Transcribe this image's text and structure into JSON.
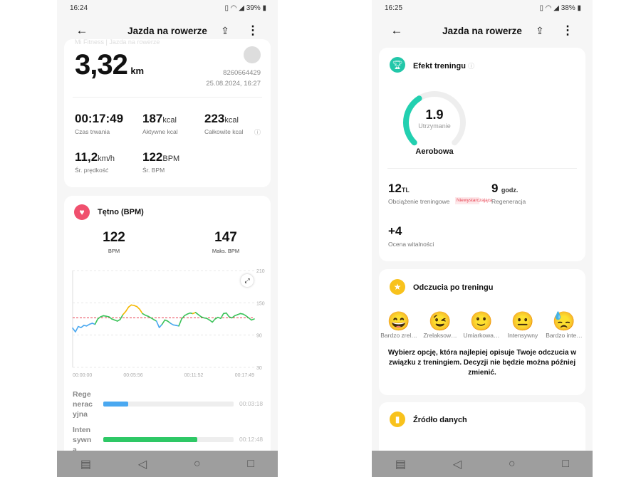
{
  "left": {
    "status": {
      "time": "16:24",
      "battery": "39%"
    },
    "header": {
      "title": "Jazda na rowerze"
    },
    "summary": {
      "faded_subtitle": "Mi Fitness | Jazda na rowerze",
      "distance": "3,32",
      "distance_unit": "km",
      "device_id": "8260664429",
      "datetime": "25.08.2024, 16:27",
      "stats": [
        {
          "value": "00:17:49",
          "unit": "",
          "label": "Czas trwania"
        },
        {
          "value": "187",
          "unit": "kcal",
          "label": "Aktywne kcal"
        },
        {
          "value": "223",
          "unit": "kcal",
          "label": "Całkowite kcal"
        },
        {
          "value": "11,2",
          "unit": "km/h",
          "label": "Śr. prędkość"
        },
        {
          "value": "122",
          "unit": "BPM",
          "label": "Śr. BPM"
        }
      ]
    },
    "heart": {
      "title": "Tętno (BPM)",
      "avg": "122",
      "avg_label": "BPM",
      "max": "147",
      "max_label": "Maks. BPM",
      "zones": [
        {
          "name": "Regeneracyjna",
          "time": "00:03:18",
          "fraction": 0.19,
          "color": "#4aa8f0"
        },
        {
          "name": "Intensywna",
          "time": "00:12:48",
          "fraction": 0.72,
          "color": "#2ec866"
        }
      ]
    }
  },
  "chart_data": {
    "type": "line",
    "title": "Tętno (BPM)",
    "xlabel": "",
    "ylabel": "BPM",
    "ylim": [
      30,
      210
    ],
    "yticks": [
      "210",
      "150",
      "90",
      "30"
    ],
    "ytick_values": [
      210,
      150,
      90,
      30
    ],
    "xticks": [
      "00:00:00",
      "00:05:56",
      "00:11:52",
      "00:17:49"
    ],
    "xlim_seconds": [
      0,
      1069
    ],
    "average_line": 122,
    "grid": true,
    "zone_colors": {
      "low": "#4aa8f0",
      "mid": "#3cc35a",
      "high": "#f5b800"
    },
    "zone_thresholds": [
      113,
      131
    ],
    "values": [
      103,
      96,
      106,
      104,
      108,
      107,
      110,
      112,
      110,
      120,
      124,
      126,
      125,
      124,
      120,
      118,
      116,
      119,
      128,
      134,
      142,
      146,
      145,
      143,
      138,
      130,
      127,
      125,
      122,
      119,
      116,
      104,
      110,
      118,
      116,
      112,
      109,
      108,
      107,
      120,
      126,
      129,
      131,
      130,
      132,
      128,
      124,
      122,
      121,
      118,
      114,
      120,
      123,
      121,
      130,
      131,
      124,
      122,
      126,
      128,
      130,
      129,
      126,
      122,
      118,
      120
    ]
  },
  "right": {
    "status": {
      "time": "16:25",
      "battery": "38%"
    },
    "header": {
      "title": "Jazda na rowerze"
    },
    "effect": {
      "title": "Efekt treningu",
      "value": "1.9",
      "gauge_fraction": 0.38,
      "state": "Utrzymanie",
      "type": "Aerobowa",
      "load": "12",
      "load_unit": "TL",
      "load_label": "Obciążenie treningowe",
      "load_badge": "Niewystarczająca",
      "recovery": "9",
      "recovery_unit": "godz.",
      "recovery_label": "Regeneracja",
      "vitality": "+4",
      "vitality_label": "Ocena witalności"
    },
    "feeling": {
      "title": "Odczucia po treningu",
      "options": [
        {
          "emoji": "😄",
          "label": "Bardzo zrel…"
        },
        {
          "emoji": "😉",
          "label": "Zrelaksow…"
        },
        {
          "emoji": "🙂",
          "label": "Umiarkowa…"
        },
        {
          "emoji": "😐",
          "label": "Intensywny"
        },
        {
          "emoji": "😓",
          "label": "Bardzo inte…"
        }
      ],
      "note": "Wybierz opcję, która najlepiej opisuje Twoje odczucia w związku z treningiem. Decyzji nie będzie można później zmienić."
    },
    "source": {
      "title": "Źródło danych"
    }
  }
}
